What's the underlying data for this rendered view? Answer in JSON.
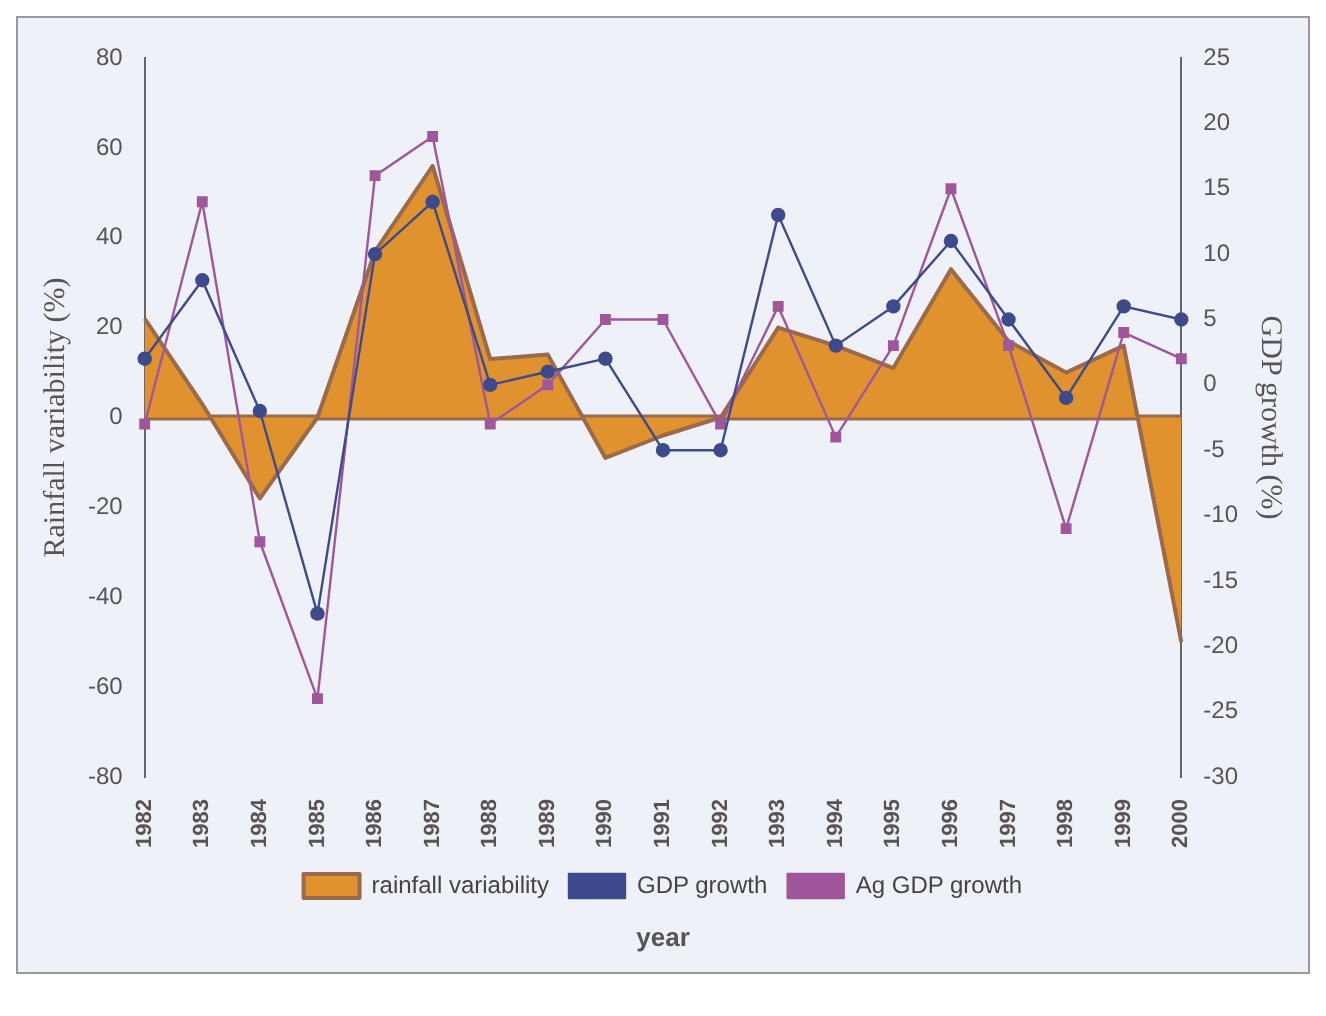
{
  "chart_data": {
    "type": "line",
    "categories": [
      "1982",
      "1983",
      "1984",
      "1985",
      "1986",
      "1987",
      "1988",
      "1989",
      "1990",
      "1991",
      "1992",
      "1993",
      "1994",
      "1995",
      "1996",
      "1997",
      "1998",
      "1999",
      "2000"
    ],
    "series": [
      {
        "name": "rainfall variability",
        "type": "area",
        "color": "#e0922e",
        "values": [
          22,
          3,
          -18,
          0,
          37,
          56,
          13,
          14,
          -9,
          -4,
          0,
          20,
          16,
          11,
          33,
          17,
          10,
          16,
          -50
        ]
      },
      {
        "name": "GDP growth",
        "type": "line",
        "axis": "y2",
        "marker": "circle",
        "color": "#3d4a8c",
        "values": [
          2,
          8,
          -2,
          -17.5,
          10,
          14,
          0,
          1,
          2,
          -5,
          -5,
          13,
          3,
          6,
          11,
          5,
          -1,
          6,
          5
        ]
      },
      {
        "name": "Ag GDP growth",
        "type": "line",
        "axis": "y2",
        "marker": "square",
        "color": "#a0569a",
        "values": [
          -3,
          14,
          -12,
          -24,
          16,
          19,
          -3,
          0,
          5,
          5,
          -3,
          6,
          -4,
          3,
          15,
          3,
          -11,
          4,
          2
        ]
      }
    ],
    "xlabel": "year",
    "ylabel": "Rainfall variability (%)",
    "y2label": "GDP growth (%)",
    "ylim": [
      -80,
      80
    ],
    "yticks": [
      -80,
      -60,
      -40,
      -20,
      0,
      20,
      40,
      60,
      80
    ],
    "y2lim": [
      -30,
      25
    ],
    "y2ticks": [
      -30,
      -25,
      -20,
      -15,
      -10,
      -5,
      0,
      5,
      10,
      15,
      20,
      25
    ],
    "ref_lines": [
      {
        "axis": "y",
        "value": 0,
        "color": "#9a6a4a"
      }
    ],
    "legend": "bottom",
    "grid": false
  }
}
